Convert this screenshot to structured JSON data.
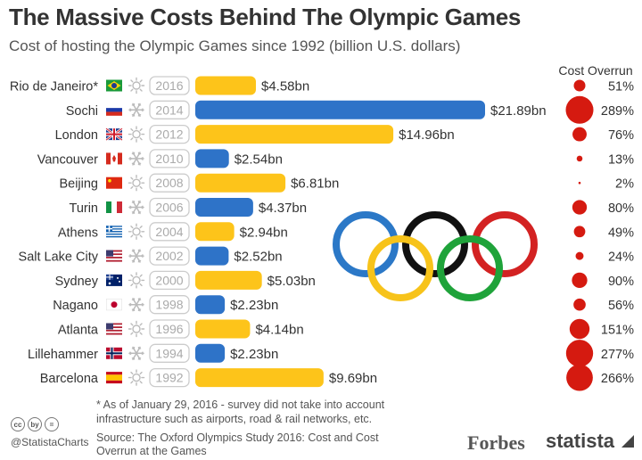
{
  "header": {
    "title": "The Massive Costs Behind The Olympic Games",
    "subtitle": "Cost of hosting the Olympic Games since 1992 (billion U.S. dollars)",
    "overrun_label": "Cost Overrun"
  },
  "footer": {
    "footnote": "* As of January 29, 2016 - survey did not take into account infrastructure such as airports, road & rail networks, etc.",
    "source": "Source: The Oxford Olympics Study 2016: Cost and Cost Overrun at the Games",
    "handle": "@StatistaCharts",
    "cc_icons": [
      "cc",
      "by",
      "="
    ],
    "brand_forbes": "Forbes",
    "brand_statista": "statista"
  },
  "colors": {
    "summer": "#FDC41A",
    "winter": "#2E73C8",
    "overrun": "#D51A10",
    "ring_blue": "#2B78C7",
    "ring_black": "#111111",
    "ring_red": "#D32222",
    "ring_yellow": "#F7C31A",
    "ring_green": "#1FA33A"
  },
  "chart_data": {
    "type": "bar",
    "orientation": "horizontal",
    "unit": "billion U.S. dollars",
    "categories": [
      "Rio de Janeiro*",
      "Sochi",
      "London",
      "Vancouver",
      "Beijing",
      "Turin",
      "Athens",
      "Salt Lake City",
      "Sydney",
      "Nagano",
      "Atlanta",
      "Lillehammer",
      "Barcelona"
    ],
    "years": [
      "2016",
      "2014",
      "2012",
      "2010",
      "2008",
      "2006",
      "2004",
      "2002",
      "2000",
      "1998",
      "1996",
      "1994",
      "1992"
    ],
    "season": [
      "summer",
      "winter",
      "summer",
      "winter",
      "summer",
      "winter",
      "summer",
      "winter",
      "summer",
      "winter",
      "summer",
      "winter",
      "summer"
    ],
    "season_icons": [
      "sun-icon",
      "snowflake-icon"
    ],
    "flags": [
      "brazil-flag",
      "russia-flag",
      "uk-flag",
      "canada-flag",
      "china-flag",
      "italy-flag",
      "greece-flag",
      "usa-flag",
      "australia-flag",
      "japan-flag",
      "usa-flag",
      "norway-flag",
      "spain-flag"
    ],
    "values": [
      4.58,
      21.89,
      14.96,
      2.54,
      6.81,
      4.37,
      2.94,
      2.52,
      5.03,
      2.23,
      4.14,
      2.23,
      9.69
    ],
    "value_labels": [
      "$4.58bn",
      "$21.89bn",
      "$14.96bn",
      "$2.54bn",
      "$6.81bn",
      "$4.37bn",
      "$2.94bn",
      "$2.52bn",
      "$5.03bn",
      "$2.23bn",
      "$4.14bn",
      "$2.23bn",
      "$9.69bn"
    ],
    "cost_overrun": [
      51,
      289,
      76,
      13,
      2,
      80,
      49,
      24,
      90,
      56,
      151,
      277,
      266
    ],
    "cost_overrun_labels": [
      "51%",
      "289%",
      "76%",
      "13%",
      "2%",
      "80%",
      "49%",
      "24%",
      "90%",
      "56%",
      "151%",
      "277%",
      "266%"
    ]
  }
}
